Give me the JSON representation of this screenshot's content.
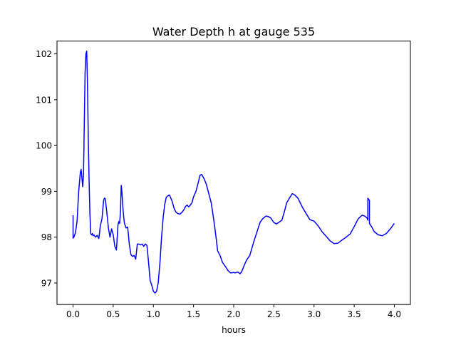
{
  "chart_data": {
    "type": "line",
    "title": "Water Depth h at gauge 535",
    "xlabel": "hours",
    "ylabel": "",
    "xlim": [
      -0.2,
      4.2
    ],
    "ylim": [
      96.53,
      102.28
    ],
    "xticks": [
      0.0,
      0.5,
      1.0,
      1.5,
      2.0,
      2.5,
      3.0,
      3.5,
      4.0
    ],
    "xtick_labels": [
      "0.0",
      "0.5",
      "1.0",
      "1.5",
      "2.0",
      "2.5",
      "3.0",
      "3.5",
      "4.0"
    ],
    "yticks": [
      97,
      98,
      99,
      100,
      101,
      102
    ],
    "ytick_labels": [
      "97",
      "98",
      "99",
      "100",
      "101",
      "102"
    ],
    "grid": false,
    "legend": "none",
    "series": [
      {
        "color": "#0000ff",
        "x": [
          0.0,
          0.0,
          0.01,
          0.03,
          0.05,
          0.07,
          0.09,
          0.1,
          0.11,
          0.12,
          0.13,
          0.14,
          0.15,
          0.16,
          0.17,
          0.18,
          0.19,
          0.2,
          0.21,
          0.22,
          0.23,
          0.24,
          0.25,
          0.26,
          0.28,
          0.3,
          0.32,
          0.33,
          0.34,
          0.36,
          0.38,
          0.39,
          0.4,
          0.42,
          0.44,
          0.46,
          0.48,
          0.5,
          0.52,
          0.54,
          0.55,
          0.56,
          0.57,
          0.58,
          0.59,
          0.6,
          0.61,
          0.62,
          0.63,
          0.64,
          0.66,
          0.68,
          0.7,
          0.72,
          0.74,
          0.76,
          0.78,
          0.8,
          0.82,
          0.84,
          0.86,
          0.88,
          0.9,
          0.92,
          0.94,
          0.96,
          0.98,
          1.0,
          1.02,
          1.04,
          1.06,
          1.08,
          1.1,
          1.12,
          1.14,
          1.16,
          1.18,
          1.2,
          1.23,
          1.26,
          1.28,
          1.3,
          1.33,
          1.36,
          1.38,
          1.4,
          1.42,
          1.44,
          1.46,
          1.48,
          1.5,
          1.53,
          1.56,
          1.58,
          1.6,
          1.63,
          1.66,
          1.69,
          1.72,
          1.75,
          1.78,
          1.8,
          1.83,
          1.86,
          1.9,
          1.93,
          1.96,
          2.0,
          2.02,
          2.05,
          2.08,
          2.1,
          2.13,
          2.16,
          2.2,
          2.25,
          2.3,
          2.33,
          2.36,
          2.4,
          2.43,
          2.46,
          2.5,
          2.53,
          2.56,
          2.6,
          2.63,
          2.66,
          2.7,
          2.73,
          2.76,
          2.8,
          2.85,
          2.9,
          2.95,
          3.0,
          3.05,
          3.1,
          3.15,
          3.2,
          3.25,
          3.3,
          3.35,
          3.4,
          3.45,
          3.5,
          3.55,
          3.6,
          3.63,
          3.66,
          3.67,
          3.67,
          3.68,
          3.69,
          3.69,
          3.72,
          3.75,
          3.8,
          3.85,
          3.9,
          3.95,
          4.0
        ],
        "y": [
          98.48,
          97.98,
          98.0,
          98.1,
          98.35,
          99.0,
          99.4,
          99.48,
          99.3,
          99.1,
          99.35,
          100.5,
          101.6,
          102.0,
          102.06,
          101.3,
          100.1,
          99.2,
          98.5,
          98.08,
          98.05,
          98.08,
          98.03,
          98.05,
          98.0,
          98.04,
          97.97,
          98.1,
          98.25,
          98.4,
          98.8,
          98.85,
          98.84,
          98.55,
          98.2,
          98.0,
          98.18,
          98.05,
          97.8,
          97.72,
          98.0,
          98.28,
          98.34,
          98.3,
          98.55,
          99.13,
          98.95,
          98.65,
          98.45,
          98.3,
          98.2,
          98.22,
          97.85,
          97.62,
          97.58,
          97.6,
          97.52,
          97.85,
          97.85,
          97.83,
          97.85,
          97.8,
          97.85,
          97.82,
          97.45,
          97.05,
          96.95,
          96.82,
          96.78,
          96.82,
          97.0,
          97.4,
          97.95,
          98.4,
          98.7,
          98.87,
          98.9,
          98.92,
          98.8,
          98.62,
          98.55,
          98.52,
          98.5,
          98.55,
          98.6,
          98.67,
          98.7,
          98.66,
          98.7,
          98.75,
          98.88,
          99.0,
          99.2,
          99.35,
          99.37,
          99.28,
          99.15,
          98.95,
          98.75,
          98.4,
          98.0,
          97.7,
          97.6,
          97.45,
          97.35,
          97.27,
          97.22,
          97.23,
          97.22,
          97.24,
          97.2,
          97.25,
          97.38,
          97.5,
          97.6,
          97.9,
          98.17,
          98.33,
          98.4,
          98.46,
          98.45,
          98.42,
          98.32,
          98.29,
          98.32,
          98.37,
          98.55,
          98.75,
          98.87,
          98.95,
          98.92,
          98.85,
          98.67,
          98.52,
          98.38,
          98.35,
          98.25,
          98.12,
          98.02,
          97.92,
          97.86,
          97.87,
          97.94,
          98.0,
          98.07,
          98.23,
          98.4,
          98.48,
          98.46,
          98.42,
          98.37,
          98.85,
          98.83,
          98.8,
          98.3,
          98.22,
          98.12,
          98.05,
          98.03,
          98.08,
          98.18,
          98.3
        ]
      }
    ]
  }
}
